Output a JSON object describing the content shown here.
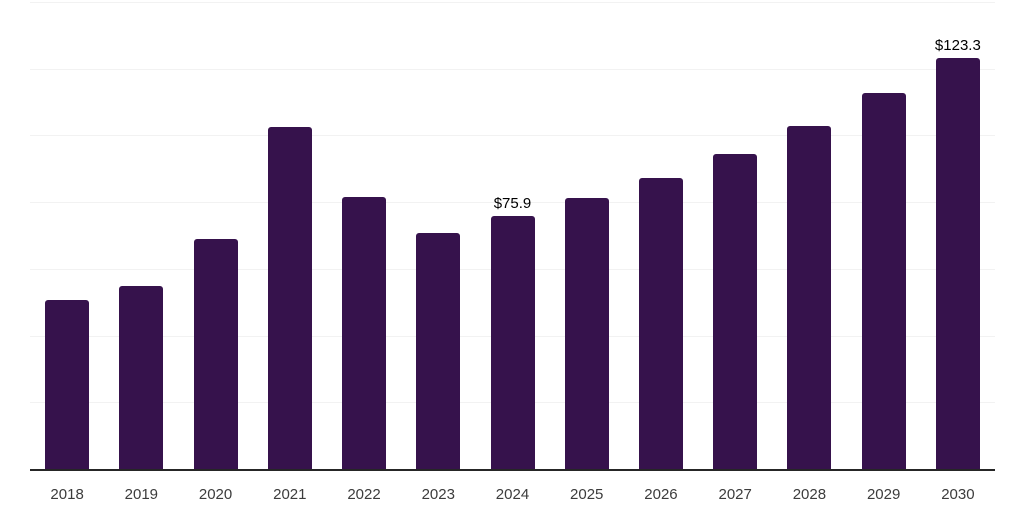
{
  "chart_data": {
    "type": "bar",
    "title": "",
    "xlabel": "",
    "ylabel": "",
    "categories": [
      "2018",
      "2019",
      "2020",
      "2021",
      "2022",
      "2023",
      "2024",
      "2025",
      "2026",
      "2027",
      "2028",
      "2029",
      "2030"
    ],
    "values": [
      50.9,
      55.1,
      69.0,
      102.8,
      81.7,
      71.0,
      75.9,
      81.3,
      87.5,
      94.6,
      103.1,
      112.8,
      123.3
    ],
    "point_labels": {
      "2024": "$75.9",
      "2030": "$123.3"
    },
    "ylim": [
      0,
      140
    ],
    "grid_step": 20,
    "grid": true,
    "legend": false,
    "colors": {
      "bar": "#36124c",
      "gridline": "#f2f2f2",
      "axis": "#262626",
      "tick_label": "#3c3c3c",
      "data_label": "#000000",
      "background": "#ffffff"
    }
  }
}
